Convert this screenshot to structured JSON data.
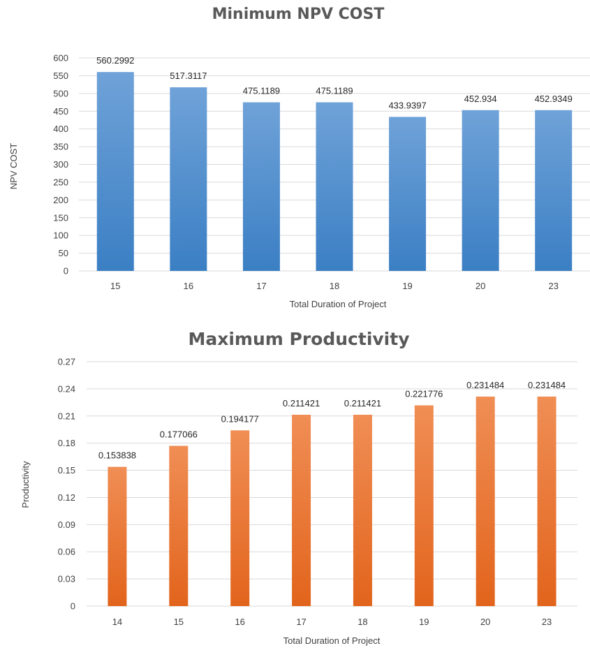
{
  "chart_data": [
    {
      "type": "bar",
      "title": "Minimum NPV COST",
      "xlabel": "Total Duration of Project",
      "ylabel": "NPV COST",
      "categories": [
        "15",
        "16",
        "17",
        "18",
        "19",
        "20",
        "23"
      ],
      "values": [
        560.2992,
        517.3117,
        475.1189,
        475.1189,
        433.9397,
        452.934,
        452.9349
      ],
      "data_labels": [
        "560.2992",
        "517.3117",
        "475.1189",
        "475.1189",
        "433.9397",
        "452.934",
        "452.9349"
      ],
      "yticks": [
        "0",
        "50",
        "100",
        "150",
        "200",
        "250",
        "300",
        "350",
        "400",
        "450",
        "500",
        "550",
        "600"
      ],
      "ylim": [
        0,
        600
      ],
      "grid": true,
      "colors": {
        "bar_top": "#6fa2d8",
        "bar_bottom": "#3b7fc4"
      }
    },
    {
      "type": "bar",
      "title": "Maximum Productivity",
      "xlabel": "Total Duration of Project",
      "ylabel": "Productivity",
      "categories": [
        "14",
        "15",
        "16",
        "17",
        "18",
        "19",
        "20",
        "23"
      ],
      "values": [
        0.153838,
        0.177066,
        0.194177,
        0.211421,
        0.211421,
        0.221776,
        0.231484,
        0.231484
      ],
      "data_labels": [
        "0.153838",
        "0.177066",
        "0.194177",
        "0.211421",
        "0.211421",
        "0.221776",
        "0.231484",
        "0.231484"
      ],
      "yticks": [
        "0",
        "0.03",
        "0.06",
        "0.09",
        "0.12",
        "0.15",
        "0.18",
        "0.21",
        "0.24",
        "0.27"
      ],
      "ylim": [
        0,
        0.27
      ],
      "grid": true,
      "colors": {
        "bar_top": "#f08e55",
        "bar_bottom": "#e2641c"
      }
    }
  ]
}
